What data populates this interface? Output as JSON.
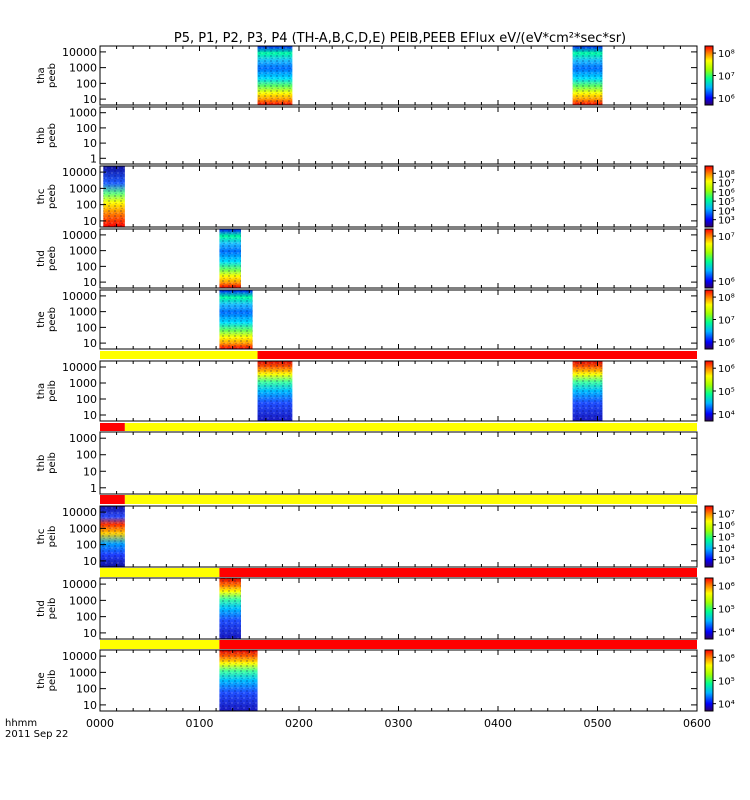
{
  "chart_data": {
    "type": "heatmap",
    "title": "P5, P1, P2, P3, P4 (TH-A,B,C,D,E) PEIB,PEEB EFlux eV/(eV*cm²*sec*sr)",
    "x_axis": {
      "range": [
        "0000",
        "0600"
      ],
      "tick_labels": [
        "0000",
        "0100",
        "0200",
        "0300",
        "0400",
        "0500",
        "0600"
      ],
      "label_line1": "hhmm",
      "label_line2": "2011 Sep 22"
    },
    "panels": [
      {
        "id": "tha_peeb",
        "ylabel": [
          "tha",
          "peeb"
        ],
        "y_ticks": [
          "10000",
          "1000",
          "100",
          "10"
        ],
        "colorbar": {
          "ticks": [
            "10⁸",
            "10⁷",
            "10⁶"
          ]
        },
        "segments": [
          {
            "x_start": "0135",
            "x_end": "0156"
          },
          {
            "x_start": "0445",
            "x_end": "0503"
          }
        ]
      },
      {
        "id": "thb_peeb",
        "ylabel": [
          "thb",
          "peeb"
        ],
        "y_ticks": [
          "1000",
          "100",
          "10",
          "1"
        ],
        "segments": []
      },
      {
        "id": "thc_peeb",
        "ylabel": [
          "thc",
          "peeb"
        ],
        "y_ticks": [
          "10000",
          "1000",
          "100",
          "10"
        ],
        "colorbar": {
          "ticks": [
            "10⁸",
            "10⁷",
            "10⁶",
            "10⁵",
            "10⁴",
            "10³"
          ]
        },
        "segments": [
          {
            "x_start": "0002",
            "x_end": "0015"
          }
        ]
      },
      {
        "id": "thd_peeb",
        "ylabel": [
          "thd",
          "peeb"
        ],
        "y_ticks": [
          "10000",
          "1000",
          "100",
          "10"
        ],
        "colorbar": {
          "ticks": [
            "10⁷",
            "10⁶"
          ]
        },
        "segments": [
          {
            "x_start": "0112",
            "x_end": "0125"
          }
        ]
      },
      {
        "id": "the_peeb",
        "ylabel": [
          "the",
          "peeb"
        ],
        "y_ticks": [
          "10000",
          "1000",
          "100",
          "10"
        ],
        "colorbar": {
          "ticks": [
            "10⁸",
            "10⁷",
            "10⁶"
          ]
        },
        "segments": [
          {
            "x_start": "0112",
            "x_end": "0132"
          }
        ]
      },
      {
        "id": "tha_peib",
        "ylabel": [
          "tha",
          "peib"
        ],
        "y_ticks": [
          "10000",
          "1000",
          "100",
          "10"
        ],
        "colorbar": {
          "ticks": [
            "10⁶",
            "10⁵",
            "10⁴"
          ]
        },
        "segments": [
          {
            "x_start": "0135",
            "x_end": "0156"
          },
          {
            "x_start": "0445",
            "x_end": "0503"
          }
        ],
        "mode_bar": [
          {
            "x_start": "0000",
            "x_end": "0135",
            "color": "#ffff00"
          },
          {
            "x_start": "0135",
            "x_end": "0600",
            "color": "#ff0000"
          }
        ]
      },
      {
        "id": "thb_peib",
        "ylabel": [
          "thb",
          "peib"
        ],
        "y_ticks": [
          "1000",
          "100",
          "10",
          "1"
        ],
        "segments": [],
        "mode_bar": [
          {
            "x_start": "0000",
            "x_end": "0015",
            "color": "#ff0000"
          },
          {
            "x_start": "0015",
            "x_end": "0600",
            "color": "#ffff00"
          }
        ]
      },
      {
        "id": "thc_peib",
        "ylabel": [
          "thc",
          "peib"
        ],
        "y_ticks": [
          "10000",
          "1000",
          "100",
          "10"
        ],
        "colorbar": {
          "ticks": [
            "10⁷",
            "10⁶",
            "10⁵",
            "10⁴",
            "10³"
          ]
        },
        "segments": [
          {
            "x_start": "0000",
            "x_end": "0015"
          }
        ],
        "mode_bar": [
          {
            "x_start": "0000",
            "x_end": "0015",
            "color": "#ff0000"
          },
          {
            "x_start": "0015",
            "x_end": "0600",
            "color": "#ffff00"
          }
        ]
      },
      {
        "id": "thd_peib",
        "ylabel": [
          "thd",
          "peib"
        ],
        "y_ticks": [
          "10000",
          "1000",
          "100",
          "10"
        ],
        "colorbar": {
          "ticks": [
            "10⁶",
            "10⁵",
            "10⁴"
          ]
        },
        "segments": [
          {
            "x_start": "0112",
            "x_end": "0125"
          }
        ],
        "mode_bar": [
          {
            "x_start": "0000",
            "x_end": "0112",
            "color": "#ffff00"
          },
          {
            "x_start": "0112",
            "x_end": "0600",
            "color": "#ff0000"
          }
        ]
      },
      {
        "id": "the_peib",
        "ylabel": [
          "the",
          "peib"
        ],
        "y_ticks": [
          "10000",
          "1000",
          "100",
          "10"
        ],
        "colorbar": {
          "ticks": [
            "10⁶",
            "10⁵",
            "10⁴"
          ]
        },
        "segments": [
          {
            "x_start": "0112",
            "x_end": "0135"
          }
        ],
        "mode_bar": [
          {
            "x_start": "0000",
            "x_end": "0112",
            "color": "#ffff00"
          },
          {
            "x_start": "0112",
            "x_end": "0600",
            "color": "#ff0000"
          }
        ]
      }
    ]
  }
}
